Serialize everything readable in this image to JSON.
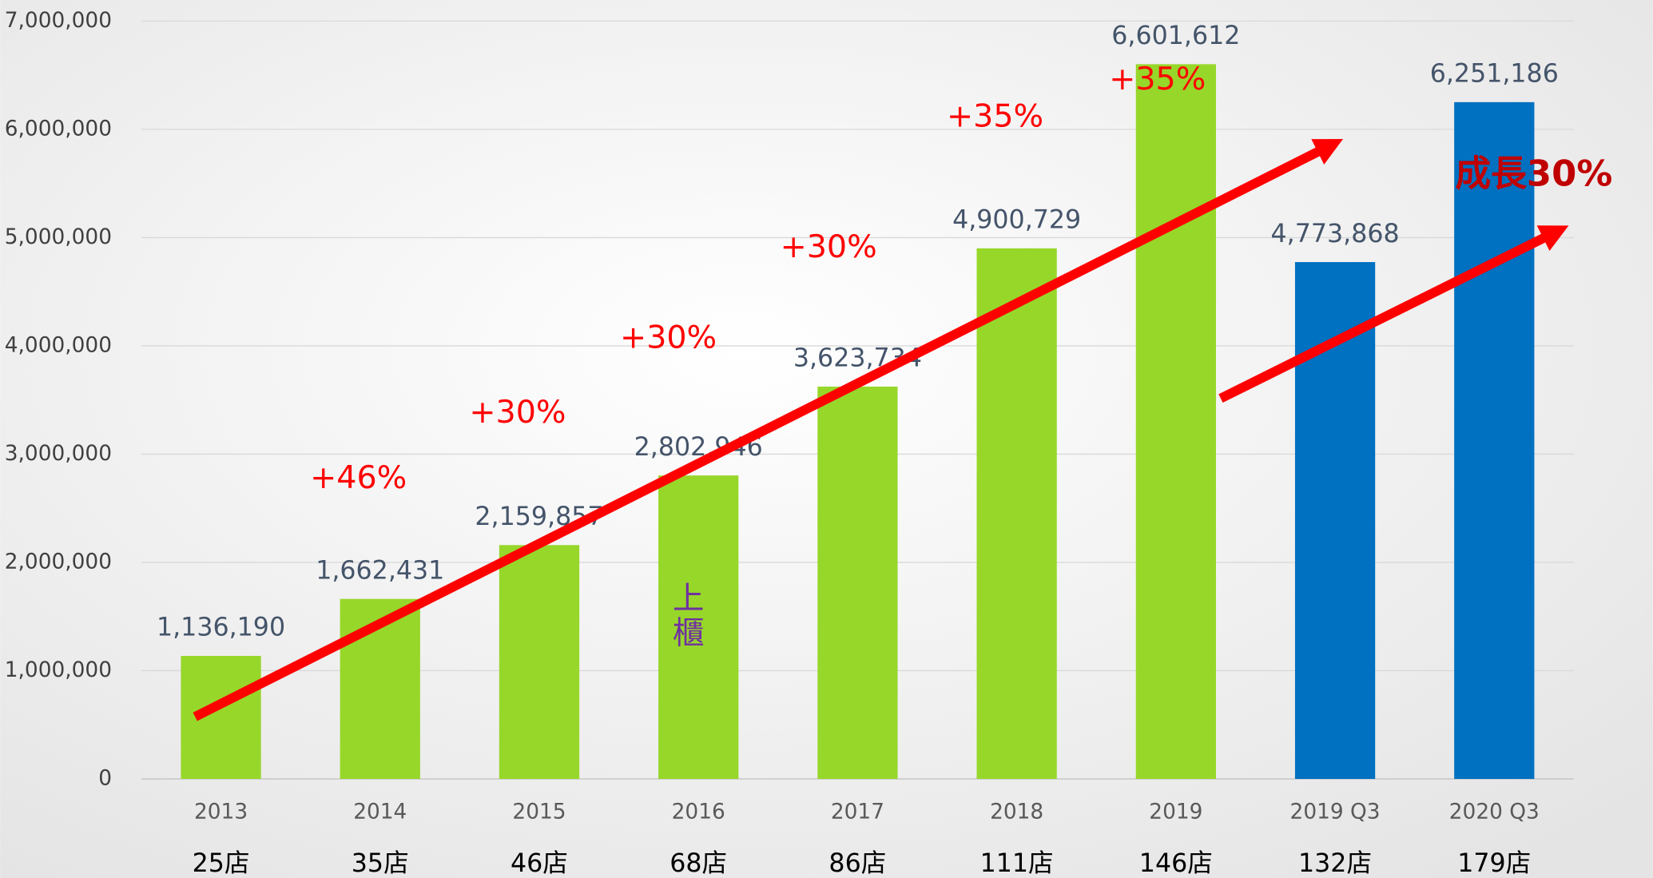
{
  "chart_data": {
    "type": "bar",
    "categories": [
      "2013",
      "2014",
      "2015",
      "2016",
      "2017",
      "2018",
      "2019",
      "2019 Q3",
      "2020 Q3"
    ],
    "store_counts": [
      "25店",
      "35店",
      "46店",
      "68店",
      "86店",
      "111店",
      "146店",
      "132店",
      "179店"
    ],
    "values": [
      1136190,
      1662431,
      2159857,
      2802946,
      3623734,
      4900729,
      6601612,
      4773868,
      6251186
    ],
    "value_labels": [
      "1,136,190",
      "1,662,431",
      "2,159,857",
      "2,802,946",
      "3,623,734",
      "4,900,729",
      "6,601,612",
      "4,773,868",
      "6,251,186"
    ],
    "colors": [
      "#97d72a",
      "#97d72a",
      "#97d72a",
      "#97d72a",
      "#97d72a",
      "#97d72a",
      "#97d72a",
      "#0070c0",
      "#0070c0"
    ],
    "ylim": [
      0,
      7000000
    ],
    "yticks": [
      0,
      {
        "value": 1000000,
        "label": "1,000,000"
      },
      {
        "value": 2000000,
        "label": "2,000,000"
      },
      {
        "value": 3000000,
        "label": "3,000,000"
      },
      {
        "value": 4000000,
        "label": "4,000,000"
      },
      {
        "value": 5000000,
        "label": "5,000,000"
      },
      {
        "value": 6000000,
        "label": "6,000,000"
      },
      {
        "value": 7000000,
        "label": "7,000,000"
      }
    ],
    "grid": true,
    "annotations": [
      "+46%",
      "+30%",
      "+30%",
      "+30%",
      "+35%",
      "+35%",
      "成長30%",
      "上",
      "櫃"
    ]
  }
}
